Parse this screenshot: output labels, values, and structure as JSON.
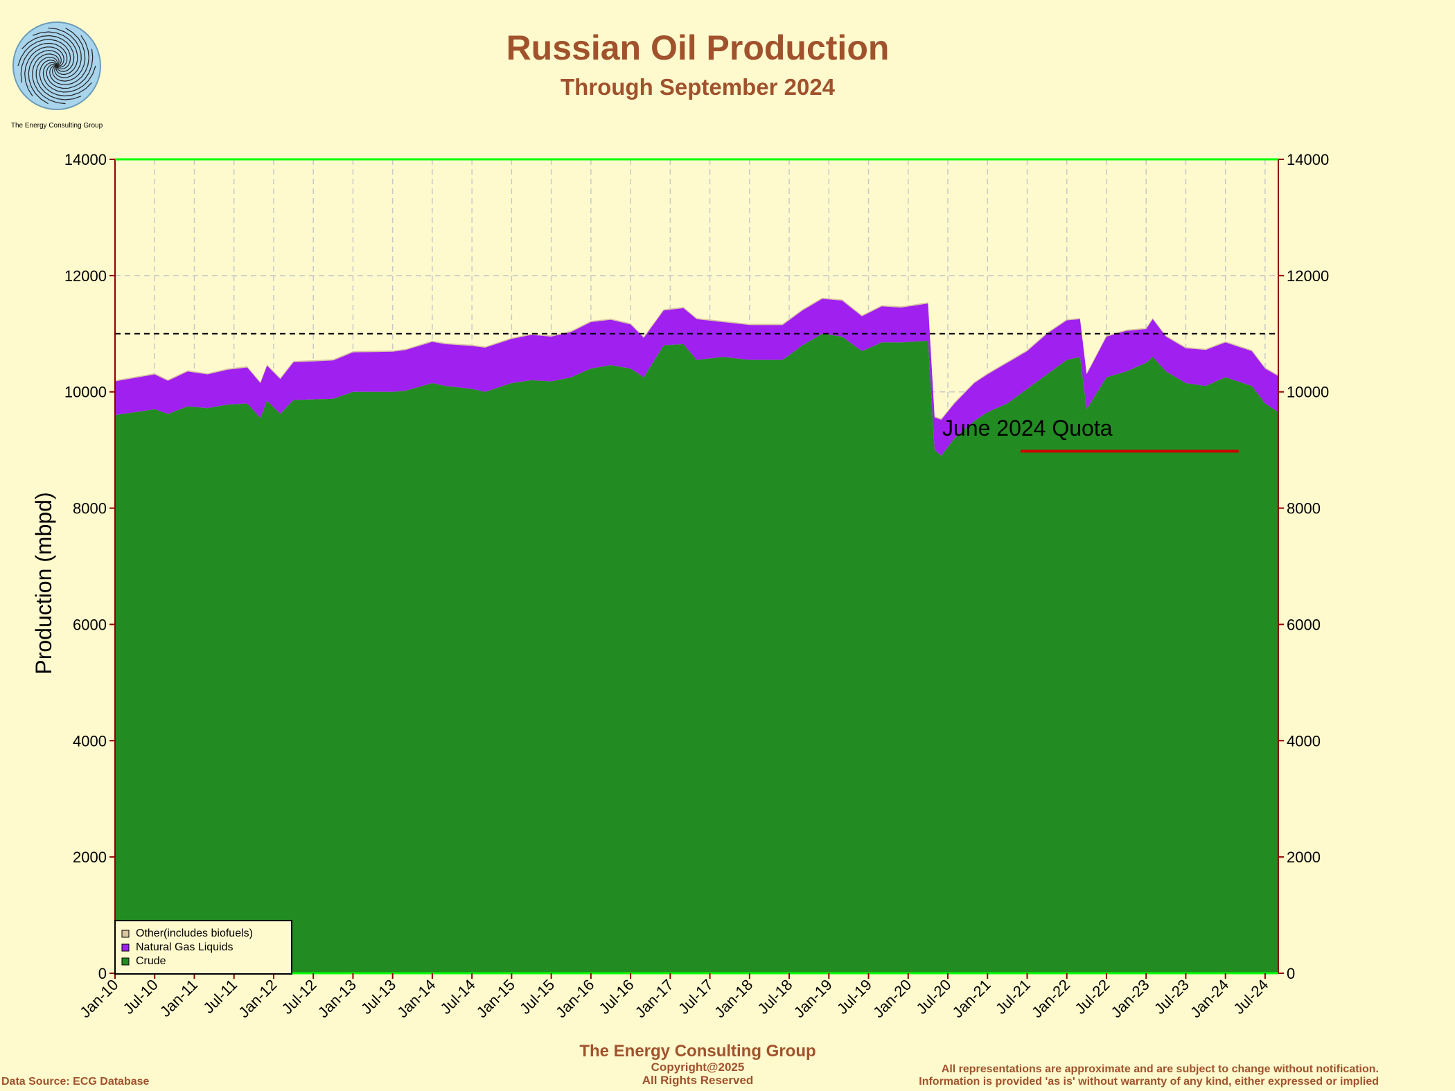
{
  "logo": {
    "caption": "The Energy Consulting Group"
  },
  "chart_data": {
    "type": "area",
    "stacked": true,
    "title": "Russian Oil Production",
    "subtitle": "Through September 2024",
    "ylabel": "Production (mbpd)",
    "ylim": [
      0,
      14000
    ],
    "yticks": [
      0,
      2000,
      4000,
      6000,
      8000,
      10000,
      12000,
      14000
    ],
    "xlim": [
      "2010-01",
      "2024-09"
    ],
    "xticks": [
      "Jan-10",
      "Jul-10",
      "Jan-11",
      "Jul-11",
      "Jan-12",
      "Jul-12",
      "Jan-13",
      "Jul-13",
      "Jan-14",
      "Jul-14",
      "Jan-15",
      "Jul-15",
      "Jan-16",
      "Jul-16",
      "Jan-17",
      "Jul-17",
      "Jan-18",
      "Jul-18",
      "Jan-19",
      "Jul-19",
      "Jan-20",
      "Jul-20",
      "Jan-21",
      "Jul-21",
      "Jan-22",
      "Jul-22",
      "Jan-23",
      "Jul-23",
      "Jan-24",
      "Jul-24"
    ],
    "grid": true,
    "legend_position": "bottom-left",
    "reference_line": {
      "value": 11000,
      "style": "dashed",
      "color": "#000000"
    },
    "annotation": {
      "text": "June 2024 Quota",
      "value": 8980,
      "x_start": "2021-06",
      "x_end": "2024-03",
      "color": "#cc0000"
    },
    "colors": {
      "crude": "#228b22",
      "ngl": "#a020f0",
      "other": "#d8c4a0",
      "background": "#fffacd",
      "frame_top": "#00ff00",
      "frame_side": "#8b0000"
    },
    "series": [
      {
        "name": "Crude",
        "points": [
          [
            "2010-01",
            9600
          ],
          [
            "2010-04",
            9650
          ],
          [
            "2010-07",
            9700
          ],
          [
            "2010-09",
            9620
          ],
          [
            "2010-12",
            9750
          ],
          [
            "2011-03",
            9720
          ],
          [
            "2011-06",
            9780
          ],
          [
            "2011-09",
            9800
          ],
          [
            "2011-11",
            9550
          ],
          [
            "2011-12",
            9850
          ],
          [
            "2012-02",
            9620
          ],
          [
            "2012-04",
            9860
          ],
          [
            "2012-10",
            9880
          ],
          [
            "2013-01",
            10000
          ],
          [
            "2013-07",
            10000
          ],
          [
            "2013-09",
            10020
          ],
          [
            "2014-01",
            10150
          ],
          [
            "2014-03",
            10100
          ],
          [
            "2014-07",
            10050
          ],
          [
            "2014-09",
            10000
          ],
          [
            "2015-01",
            10150
          ],
          [
            "2015-04",
            10200
          ],
          [
            "2015-07",
            10180
          ],
          [
            "2015-10",
            10250
          ],
          [
            "2016-01",
            10400
          ],
          [
            "2016-04",
            10460
          ],
          [
            "2016-07",
            10400
          ],
          [
            "2016-09",
            10250
          ],
          [
            "2016-12",
            10800
          ],
          [
            "2017-03",
            10820
          ],
          [
            "2017-05",
            10550
          ],
          [
            "2017-09",
            10600
          ],
          [
            "2018-01",
            10550
          ],
          [
            "2018-06",
            10550
          ],
          [
            "2018-09",
            10800
          ],
          [
            "2018-12",
            11000
          ],
          [
            "2019-03",
            10950
          ],
          [
            "2019-06",
            10700
          ],
          [
            "2019-09",
            10850
          ],
          [
            "2019-12",
            10850
          ],
          [
            "2020-04",
            10880
          ],
          [
            "2020-05",
            9000
          ],
          [
            "2020-06",
            8900
          ],
          [
            "2020-08",
            9200
          ],
          [
            "2020-11",
            9500
          ],
          [
            "2021-01",
            9650
          ],
          [
            "2021-04",
            9800
          ],
          [
            "2021-07",
            10050
          ],
          [
            "2021-10",
            10300
          ],
          [
            "2022-01",
            10550
          ],
          [
            "2022-03",
            10600
          ],
          [
            "2022-04",
            9700
          ],
          [
            "2022-07",
            10250
          ],
          [
            "2022-10",
            10350
          ],
          [
            "2023-01",
            10500
          ],
          [
            "2023-02",
            10600
          ],
          [
            "2023-04",
            10350
          ],
          [
            "2023-07",
            10150
          ],
          [
            "2023-10",
            10100
          ],
          [
            "2024-01",
            10250
          ],
          [
            "2024-05",
            10100
          ],
          [
            "2024-07",
            9800
          ],
          [
            "2024-09",
            9650
          ]
        ]
      },
      {
        "name": "Natural Gas Liquids",
        "points": [
          [
            "2010-01",
            580
          ],
          [
            "2010-04",
            590
          ],
          [
            "2010-07",
            600
          ],
          [
            "2010-09",
            570
          ],
          [
            "2010-12",
            600
          ],
          [
            "2011-03",
            580
          ],
          [
            "2011-06",
            600
          ],
          [
            "2011-09",
            620
          ],
          [
            "2011-11",
            600
          ],
          [
            "2011-12",
            600
          ],
          [
            "2012-02",
            600
          ],
          [
            "2012-04",
            650
          ],
          [
            "2012-10",
            660
          ],
          [
            "2013-01",
            680
          ],
          [
            "2013-07",
            690
          ],
          [
            "2013-09",
            700
          ],
          [
            "2014-01",
            710
          ],
          [
            "2014-03",
            720
          ],
          [
            "2014-07",
            740
          ],
          [
            "2014-09",
            760
          ],
          [
            "2015-01",
            760
          ],
          [
            "2015-04",
            780
          ],
          [
            "2015-07",
            770
          ],
          [
            "2015-10",
            780
          ],
          [
            "2016-01",
            800
          ],
          [
            "2016-04",
            780
          ],
          [
            "2016-07",
            760
          ],
          [
            "2016-09",
            680
          ],
          [
            "2016-12",
            600
          ],
          [
            "2017-03",
            620
          ],
          [
            "2017-05",
            700
          ],
          [
            "2017-09",
            600
          ],
          [
            "2018-01",
            600
          ],
          [
            "2018-06",
            600
          ],
          [
            "2018-09",
            600
          ],
          [
            "2018-12",
            600
          ],
          [
            "2019-03",
            620
          ],
          [
            "2019-06",
            600
          ],
          [
            "2019-09",
            620
          ],
          [
            "2019-12",
            600
          ],
          [
            "2020-04",
            640
          ],
          [
            "2020-05",
            560
          ],
          [
            "2020-06",
            620
          ],
          [
            "2020-08",
            600
          ],
          [
            "2020-11",
            650
          ],
          [
            "2021-01",
            650
          ],
          [
            "2021-04",
            700
          ],
          [
            "2021-07",
            650
          ],
          [
            "2021-10",
            700
          ],
          [
            "2022-01",
            680
          ],
          [
            "2022-03",
            650
          ],
          [
            "2022-04",
            600
          ],
          [
            "2022-07",
            700
          ],
          [
            "2022-10",
            700
          ],
          [
            "2023-01",
            580
          ],
          [
            "2023-02",
            650
          ],
          [
            "2023-04",
            600
          ],
          [
            "2023-07",
            600
          ],
          [
            "2023-10",
            620
          ],
          [
            "2024-01",
            600
          ],
          [
            "2024-05",
            600
          ],
          [
            "2024-07",
            600
          ],
          [
            "2024-09",
            620
          ]
        ]
      },
      {
        "name": "Other(includes biofuels)",
        "points": [
          [
            "2010-01",
            20
          ],
          [
            "2024-09",
            20
          ]
        ]
      }
    ]
  },
  "footer": {
    "org": "The Energy Consulting Group",
    "copyright": "Copyright@2025",
    "rights": "All Rights Reserved",
    "source": "Data Source: ECG Database",
    "disclaimer1": "All representations are approximate and are subject to change without notification.",
    "disclaimer2": "Information is provided 'as is' without warranty of any kind, either expressed or implied"
  }
}
